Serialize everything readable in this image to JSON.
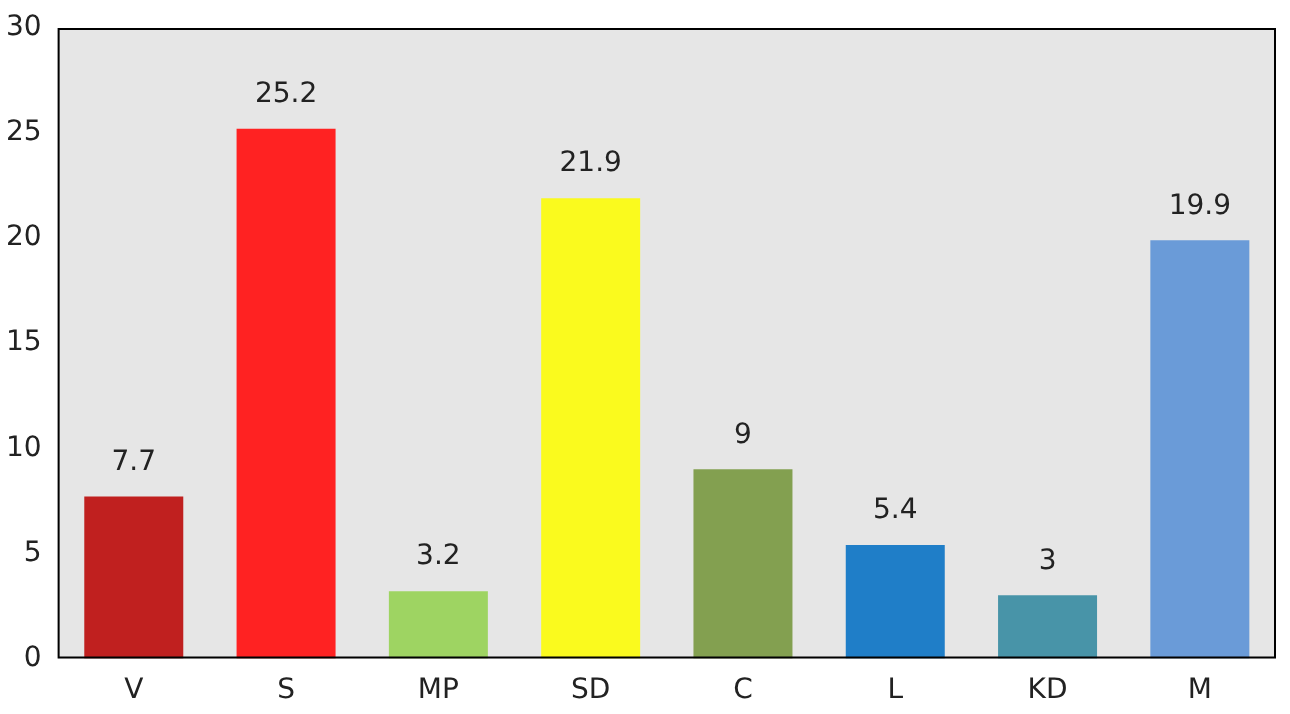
{
  "chart_data": {
    "type": "bar",
    "categories": [
      "V",
      "S",
      "MP",
      "SD",
      "C",
      "L",
      "KD",
      "M"
    ],
    "values": [
      7.7,
      25.2,
      3.2,
      21.9,
      9,
      5.4,
      3,
      19.9
    ],
    "colors": [
      "#c0201f",
      "#ff2222",
      "#9ed462",
      "#fafa1e",
      "#83a050",
      "#1f7ec8",
      "#4894a8",
      "#6a9bd8"
    ],
    "ylim": [
      0,
      30
    ],
    "yticks": [
      0,
      5,
      10,
      15,
      20,
      25,
      30
    ],
    "grid": false,
    "legend": false,
    "data_labels": true
  }
}
